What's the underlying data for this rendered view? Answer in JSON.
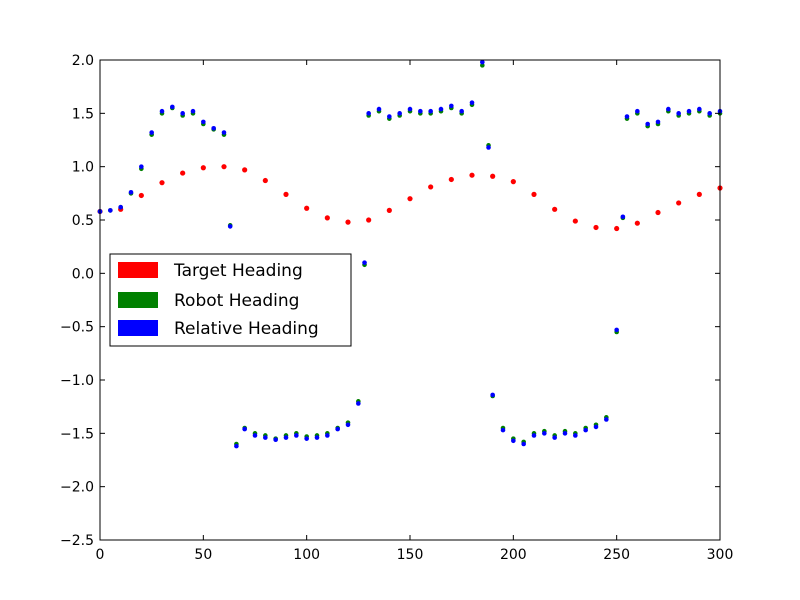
{
  "chart_data": {
    "type": "scatter",
    "title": "",
    "xlabel": "",
    "ylabel": "",
    "xlim": [
      0,
      300
    ],
    "ylim": [
      -2.5,
      2.0
    ],
    "xticks": [
      0,
      50,
      100,
      150,
      200,
      250,
      300
    ],
    "yticks": [
      -2.5,
      -2.0,
      -1.5,
      -1.0,
      -0.5,
      0.0,
      0.5,
      1.0,
      1.5,
      2.0
    ],
    "xtick_labels": [
      "0",
      "50",
      "100",
      "150",
      "200",
      "250",
      "300"
    ],
    "ytick_labels": [
      "−2.5",
      "−2.0",
      "−1.5",
      "−1.0",
      "−0.5",
      "0.0",
      "0.5",
      "1.0",
      "1.5",
      "2.0"
    ],
    "grid": false,
    "legend_position": "center-left",
    "series": [
      {
        "name": "Target Heading",
        "color": "#ff0000",
        "x": [
          0,
          10,
          20,
          30,
          40,
          50,
          60,
          70,
          80,
          90,
          100,
          110,
          120,
          130,
          140,
          150,
          160,
          170,
          180,
          190,
          200,
          210,
          220,
          230,
          240,
          250,
          260,
          270,
          280,
          290,
          300
        ],
        "y": [
          0.58,
          0.6,
          0.73,
          0.85,
          0.94,
          0.99,
          1.0,
          0.97,
          0.87,
          0.74,
          0.61,
          0.52,
          0.48,
          0.5,
          0.59,
          0.7,
          0.81,
          0.88,
          0.92,
          0.91,
          0.86,
          0.74,
          0.6,
          0.49,
          0.43,
          0.42,
          0.47,
          0.57,
          0.66,
          0.74,
          0.8
        ]
      },
      {
        "name": "Robot Heading",
        "color": "#008000",
        "x": [
          0,
          5,
          10,
          15,
          20,
          25,
          30,
          35,
          40,
          45,
          50,
          55,
          60,
          63,
          66,
          70,
          75,
          80,
          85,
          90,
          95,
          100,
          105,
          110,
          115,
          120,
          125,
          128,
          130,
          135,
          140,
          145,
          150,
          155,
          160,
          165,
          170,
          175,
          180,
          185,
          188,
          190,
          195,
          200,
          205,
          210,
          215,
          220,
          225,
          230,
          235,
          240,
          245,
          250,
          253,
          255,
          260,
          265,
          270,
          275,
          280,
          285,
          290,
          295,
          300
        ],
        "y": [
          0.58,
          0.59,
          0.62,
          0.75,
          0.98,
          1.3,
          1.5,
          1.55,
          1.48,
          1.5,
          1.4,
          1.35,
          1.3,
          0.45,
          -1.6,
          -1.45,
          -1.5,
          -1.52,
          -1.55,
          -1.52,
          -1.5,
          -1.53,
          -1.52,
          -1.5,
          -1.45,
          -1.4,
          -1.2,
          0.08,
          1.48,
          1.52,
          1.45,
          1.48,
          1.52,
          1.5,
          1.5,
          1.52,
          1.55,
          1.5,
          1.58,
          1.95,
          1.2,
          -1.15,
          -1.45,
          -1.55,
          -1.58,
          -1.5,
          -1.48,
          -1.52,
          -1.48,
          -1.5,
          -1.45,
          -1.42,
          -1.35,
          -0.55,
          0.52,
          1.45,
          1.5,
          1.38,
          1.4,
          1.52,
          1.48,
          1.5,
          1.52,
          1.48,
          1.5
        ]
      },
      {
        "name": "Relative Heading",
        "color": "#0000ff",
        "x": [
          0,
          5,
          10,
          15,
          20,
          25,
          30,
          35,
          40,
          45,
          50,
          55,
          60,
          63,
          66,
          70,
          75,
          80,
          85,
          90,
          95,
          100,
          105,
          110,
          115,
          120,
          125,
          128,
          130,
          135,
          140,
          145,
          150,
          155,
          160,
          165,
          170,
          175,
          180,
          185,
          188,
          190,
          195,
          200,
          205,
          210,
          215,
          220,
          225,
          230,
          235,
          240,
          245,
          250,
          253,
          255,
          260,
          265,
          270,
          275,
          280,
          285,
          290,
          295,
          300
        ],
        "y": [
          0.58,
          0.59,
          0.62,
          0.76,
          1.0,
          1.32,
          1.52,
          1.56,
          1.5,
          1.52,
          1.42,
          1.36,
          1.32,
          0.44,
          -1.62,
          -1.46,
          -1.52,
          -1.54,
          -1.56,
          -1.54,
          -1.52,
          -1.55,
          -1.54,
          -1.52,
          -1.46,
          -1.42,
          -1.22,
          0.1,
          1.5,
          1.54,
          1.47,
          1.5,
          1.54,
          1.52,
          1.52,
          1.54,
          1.57,
          1.52,
          1.6,
          1.98,
          1.18,
          -1.14,
          -1.47,
          -1.57,
          -1.6,
          -1.52,
          -1.5,
          -1.54,
          -1.5,
          -1.52,
          -1.47,
          -1.44,
          -1.37,
          -0.53,
          0.53,
          1.47,
          1.52,
          1.4,
          1.42,
          1.54,
          1.5,
          1.52,
          1.54,
          1.5,
          1.52
        ]
      }
    ]
  }
}
